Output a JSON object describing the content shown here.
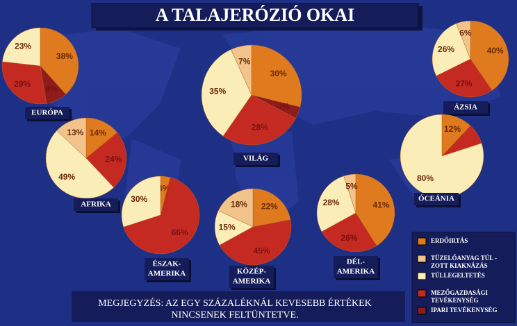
{
  "title": "A TALAJERÓZIÓ OKAI",
  "note": [
    "MEGJEGYZÉS: AZ EGY SZÁZALÉKNÁL KEVESEBB ÉRTÉKEK",
    "NINCSENEK FELTÜNTETVE."
  ],
  "legend": {
    "items": [
      {
        "label": [
          "ERDŐIRTÁS"
        ],
        "color": "#e07a1e"
      },
      {
        "label": [
          "TÜZELŐANYAG TÚL -",
          "ZOTT KIAKNÁZÁS"
        ],
        "color": "#f2c48c"
      },
      {
        "label": [
          "TÚLLEGELTETÉS"
        ],
        "color": "#fbedb8"
      },
      {
        "label": [
          "MEZŐGAZDASÁGI",
          "TEVÉKENYSÉG"
        ],
        "color": "#c42a22"
      },
      {
        "label": [
          "IPARI TEVÉKENYSÉG"
        ],
        "color": "#8e1c1c"
      }
    ]
  },
  "chart_data": [
    {
      "type": "pie",
      "title": [
        "EURÓPA"
      ],
      "values": [
        38,
        null,
        23,
        29,
        9
      ],
      "value_labels": [
        "38%",
        null,
        "23%",
        "29%",
        "9%"
      ]
    },
    {
      "type": "pie",
      "title": [
        "VILÁG"
      ],
      "values": [
        30,
        7,
        35,
        28,
        4
      ],
      "value_labels": [
        "30%",
        "7%",
        "35%",
        "28%",
        "4%"
      ]
    },
    {
      "type": "pie",
      "title": [
        "ÁZSIA"
      ],
      "values": [
        40,
        6,
        26,
        27,
        null
      ],
      "value_labels": [
        "40%",
        "6%",
        "26%",
        "27%",
        null
      ]
    },
    {
      "type": "pie",
      "title": [
        "AFRIKA"
      ],
      "values": [
        14,
        13,
        49,
        24,
        null
      ],
      "value_labels": [
        "14%",
        "13%",
        "49%",
        "24%",
        null
      ]
    },
    {
      "type": "pie",
      "title": [
        "ÓCEÁNIA"
      ],
      "values": [
        12,
        null,
        80,
        8,
        null
      ],
      "value_labels": [
        "12%",
        null,
        "80%",
        null,
        null
      ]
    },
    {
      "type": "pie",
      "title": [
        "ÉSZAK-",
        "AMERIKA"
      ],
      "values": [
        4,
        null,
        30,
        66,
        null
      ],
      "value_labels": [
        "4%",
        null,
        "30%",
        "66%",
        null
      ]
    },
    {
      "type": "pie",
      "title": [
        "KÖZÉP-",
        "AMERIKA"
      ],
      "values": [
        22,
        18,
        15,
        45,
        null
      ],
      "value_labels": [
        "22%",
        "18%",
        "15%",
        "45%",
        null
      ]
    },
    {
      "type": "pie",
      "title": [
        "DÉL-",
        "AMERIKA"
      ],
      "values": [
        41,
        5,
        28,
        26,
        null
      ],
      "value_labels": [
        "41%",
        "5%",
        "28%",
        "26%",
        null
      ]
    }
  ]
}
